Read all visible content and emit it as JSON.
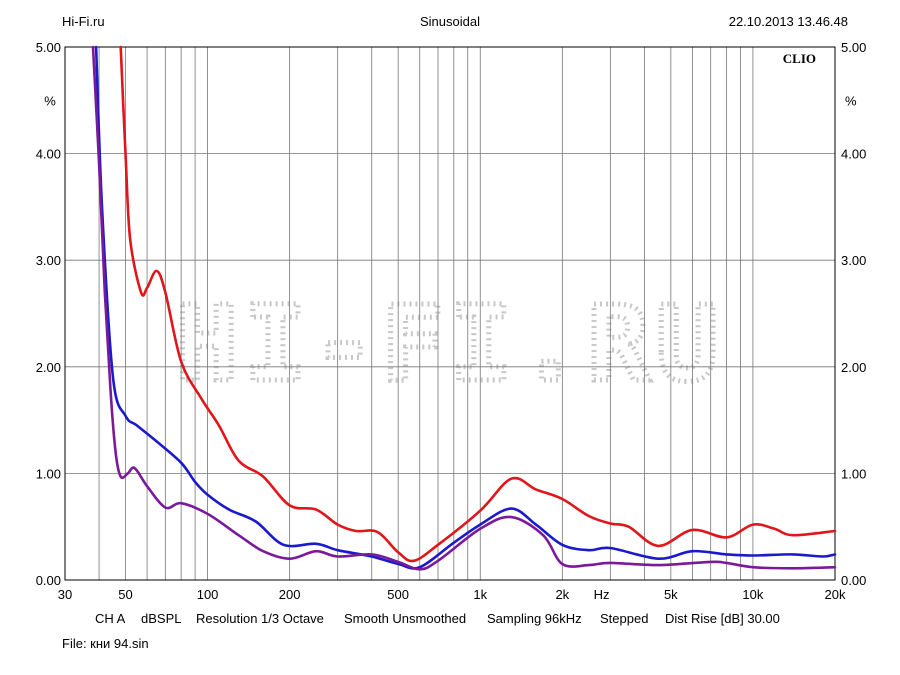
{
  "header": {
    "left": "Hi-Fi.ru",
    "center": "Sinusoidal",
    "right": "22.10.2013 13.46.48"
  },
  "brand_label": "CLIO",
  "watermark_text": "HI-FI.RU",
  "settings": {
    "channel": "CH A",
    "unit": "dBSPL",
    "resolution": "Resolution 1/3 Octave",
    "smoothing": "Smooth Unsmoothed",
    "sampling": "Sampling 96kHz",
    "stepping": "Stepped",
    "dist_rise": "Dist Rise [dB] 30.00"
  },
  "file": "File: кни 94.sin",
  "chart_data": {
    "type": "line",
    "title": "",
    "xscale": "log",
    "xlim": [
      30,
      20000
    ],
    "ylim": [
      0,
      5
    ],
    "ylabel": "%",
    "xunit": "Hz",
    "grid": true,
    "x_tick_labels": [
      {
        "v": 30,
        "t": "30"
      },
      {
        "v": 50,
        "t": "50"
      },
      {
        "v": 100,
        "t": "100"
      },
      {
        "v": 200,
        "t": "200"
      },
      {
        "v": 500,
        "t": "500"
      },
      {
        "v": 1000,
        "t": "1k"
      },
      {
        "v": 2000,
        "t": "2k"
      },
      {
        "v": 5000,
        "t": "5k"
      },
      {
        "v": 10000,
        "t": "10k"
      },
      {
        "v": 20000,
        "t": "20k"
      }
    ],
    "y_tick_labels": [
      "0.00",
      "1.00",
      "2.00",
      "3.00",
      "4.00",
      "5.00"
    ],
    "series": [
      {
        "color": "#e0161b",
        "points": [
          [
            48,
            5.0
          ],
          [
            50,
            4.0
          ],
          [
            52,
            3.2
          ],
          [
            57,
            2.7
          ],
          [
            60,
            2.74
          ],
          [
            65,
            2.9
          ],
          [
            70,
            2.7
          ],
          [
            80,
            2.05
          ],
          [
            95,
            1.7
          ],
          [
            110,
            1.45
          ],
          [
            130,
            1.12
          ],
          [
            160,
            0.97
          ],
          [
            200,
            0.7
          ],
          [
            250,
            0.66
          ],
          [
            300,
            0.52
          ],
          [
            350,
            0.46
          ],
          [
            420,
            0.45
          ],
          [
            500,
            0.26
          ],
          [
            570,
            0.18
          ],
          [
            700,
            0.33
          ],
          [
            1000,
            0.65
          ],
          [
            1300,
            0.95
          ],
          [
            1600,
            0.85
          ],
          [
            2000,
            0.76
          ],
          [
            2500,
            0.6
          ],
          [
            3000,
            0.53
          ],
          [
            3500,
            0.5
          ],
          [
            4500,
            0.32
          ],
          [
            6000,
            0.47
          ],
          [
            8000,
            0.4
          ],
          [
            10000,
            0.52
          ],
          [
            12000,
            0.48
          ],
          [
            14000,
            0.42
          ],
          [
            20000,
            0.46
          ]
        ]
      },
      {
        "color": "#1a1acc",
        "points": [
          [
            39,
            5.0
          ],
          [
            41,
            3.5
          ],
          [
            45,
            1.9
          ],
          [
            50,
            1.54
          ],
          [
            55,
            1.45
          ],
          [
            65,
            1.3
          ],
          [
            80,
            1.1
          ],
          [
            90,
            0.92
          ],
          [
            100,
            0.8
          ],
          [
            120,
            0.66
          ],
          [
            150,
            0.55
          ],
          [
            190,
            0.33
          ],
          [
            250,
            0.34
          ],
          [
            300,
            0.28
          ],
          [
            400,
            0.22
          ],
          [
            500,
            0.15
          ],
          [
            600,
            0.12
          ],
          [
            800,
            0.35
          ],
          [
            1000,
            0.52
          ],
          [
            1300,
            0.67
          ],
          [
            1600,
            0.52
          ],
          [
            2000,
            0.33
          ],
          [
            2500,
            0.28
          ],
          [
            3000,
            0.3
          ],
          [
            4500,
            0.2
          ],
          [
            6000,
            0.27
          ],
          [
            8000,
            0.24
          ],
          [
            10000,
            0.23
          ],
          [
            14000,
            0.24
          ],
          [
            18000,
            0.22
          ],
          [
            20000,
            0.24
          ]
        ]
      },
      {
        "color": "#7a1a9a",
        "points": [
          [
            38,
            5.0
          ],
          [
            40,
            3.9
          ],
          [
            42,
            2.7
          ],
          [
            44,
            1.8
          ],
          [
            46,
            1.2
          ],
          [
            48,
            0.97
          ],
          [
            51,
            1.0
          ],
          [
            54,
            1.05
          ],
          [
            60,
            0.88
          ],
          [
            70,
            0.68
          ],
          [
            80,
            0.72
          ],
          [
            100,
            0.62
          ],
          [
            130,
            0.42
          ],
          [
            160,
            0.27
          ],
          [
            200,
            0.2
          ],
          [
            250,
            0.27
          ],
          [
            300,
            0.22
          ],
          [
            400,
            0.24
          ],
          [
            500,
            0.17
          ],
          [
            600,
            0.1
          ],
          [
            700,
            0.18
          ],
          [
            1000,
            0.48
          ],
          [
            1300,
            0.59
          ],
          [
            1700,
            0.42
          ],
          [
            2000,
            0.15
          ],
          [
            2500,
            0.14
          ],
          [
            3000,
            0.16
          ],
          [
            4500,
            0.14
          ],
          [
            7000,
            0.17
          ],
          [
            8000,
            0.16
          ],
          [
            10000,
            0.12
          ],
          [
            14000,
            0.11
          ],
          [
            20000,
            0.12
          ]
        ]
      }
    ]
  }
}
